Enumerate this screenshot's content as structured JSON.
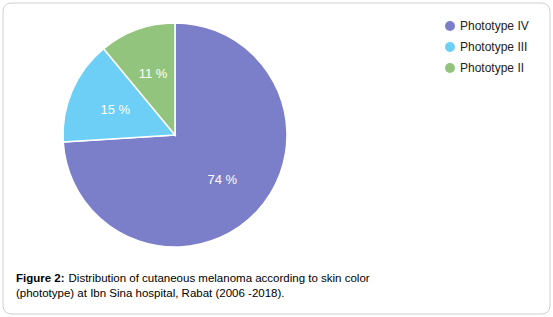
{
  "chart_data": {
    "type": "pie",
    "categories": [
      "Phototype IV",
      "Phototype III",
      "Phototype II"
    ],
    "values": [
      74,
      15,
      11
    ],
    "value_labels": [
      "74 %",
      "15 %",
      "11 %"
    ],
    "colors": [
      "#7b7ec8",
      "#6dcff6",
      "#93c47d"
    ],
    "data_labels": true,
    "legend": "upper right",
    "annotations": [
      "Figure 2:",
      "Distribution of cutaneous melanoma according to skin color\n(phototype) at Ibn Sina hospital, Rabat (2006 -2018)."
    ]
  }
}
